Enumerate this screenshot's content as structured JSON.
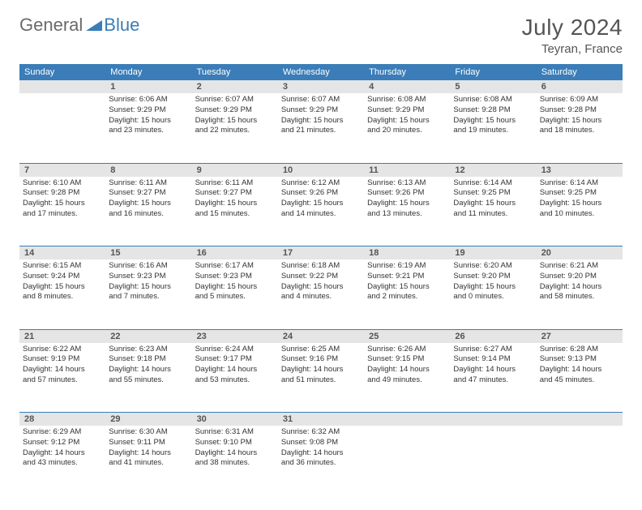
{
  "brand": {
    "part1": "General",
    "part2": "Blue"
  },
  "title": "July 2024",
  "location": "Teyran, France",
  "colors": {
    "header_bg": "#3a7db8",
    "header_fg": "#ffffff",
    "daynum_bg": "#e5e5e5",
    "text": "#333333",
    "divider": "#3a7db8"
  },
  "day_headers": [
    "Sunday",
    "Monday",
    "Tuesday",
    "Wednesday",
    "Thursday",
    "Friday",
    "Saturday"
  ],
  "weeks": [
    {
      "nums": [
        "",
        "1",
        "2",
        "3",
        "4",
        "5",
        "6"
      ],
      "cells": [
        null,
        {
          "sunrise": "Sunrise: 6:06 AM",
          "sunset": "Sunset: 9:29 PM",
          "d1": "Daylight: 15 hours",
          "d2": "and 23 minutes."
        },
        {
          "sunrise": "Sunrise: 6:07 AM",
          "sunset": "Sunset: 9:29 PM",
          "d1": "Daylight: 15 hours",
          "d2": "and 22 minutes."
        },
        {
          "sunrise": "Sunrise: 6:07 AM",
          "sunset": "Sunset: 9:29 PM",
          "d1": "Daylight: 15 hours",
          "d2": "and 21 minutes."
        },
        {
          "sunrise": "Sunrise: 6:08 AM",
          "sunset": "Sunset: 9:29 PM",
          "d1": "Daylight: 15 hours",
          "d2": "and 20 minutes."
        },
        {
          "sunrise": "Sunrise: 6:08 AM",
          "sunset": "Sunset: 9:28 PM",
          "d1": "Daylight: 15 hours",
          "d2": "and 19 minutes."
        },
        {
          "sunrise": "Sunrise: 6:09 AM",
          "sunset": "Sunset: 9:28 PM",
          "d1": "Daylight: 15 hours",
          "d2": "and 18 minutes."
        }
      ]
    },
    {
      "nums": [
        "7",
        "8",
        "9",
        "10",
        "11",
        "12",
        "13"
      ],
      "cells": [
        {
          "sunrise": "Sunrise: 6:10 AM",
          "sunset": "Sunset: 9:28 PM",
          "d1": "Daylight: 15 hours",
          "d2": "and 17 minutes."
        },
        {
          "sunrise": "Sunrise: 6:11 AM",
          "sunset": "Sunset: 9:27 PM",
          "d1": "Daylight: 15 hours",
          "d2": "and 16 minutes."
        },
        {
          "sunrise": "Sunrise: 6:11 AM",
          "sunset": "Sunset: 9:27 PM",
          "d1": "Daylight: 15 hours",
          "d2": "and 15 minutes."
        },
        {
          "sunrise": "Sunrise: 6:12 AM",
          "sunset": "Sunset: 9:26 PM",
          "d1": "Daylight: 15 hours",
          "d2": "and 14 minutes."
        },
        {
          "sunrise": "Sunrise: 6:13 AM",
          "sunset": "Sunset: 9:26 PM",
          "d1": "Daylight: 15 hours",
          "d2": "and 13 minutes."
        },
        {
          "sunrise": "Sunrise: 6:14 AM",
          "sunset": "Sunset: 9:25 PM",
          "d1": "Daylight: 15 hours",
          "d2": "and 11 minutes."
        },
        {
          "sunrise": "Sunrise: 6:14 AM",
          "sunset": "Sunset: 9:25 PM",
          "d1": "Daylight: 15 hours",
          "d2": "and 10 minutes."
        }
      ]
    },
    {
      "nums": [
        "14",
        "15",
        "16",
        "17",
        "18",
        "19",
        "20"
      ],
      "cells": [
        {
          "sunrise": "Sunrise: 6:15 AM",
          "sunset": "Sunset: 9:24 PM",
          "d1": "Daylight: 15 hours",
          "d2": "and 8 minutes."
        },
        {
          "sunrise": "Sunrise: 6:16 AM",
          "sunset": "Sunset: 9:23 PM",
          "d1": "Daylight: 15 hours",
          "d2": "and 7 minutes."
        },
        {
          "sunrise": "Sunrise: 6:17 AM",
          "sunset": "Sunset: 9:23 PM",
          "d1": "Daylight: 15 hours",
          "d2": "and 5 minutes."
        },
        {
          "sunrise": "Sunrise: 6:18 AM",
          "sunset": "Sunset: 9:22 PM",
          "d1": "Daylight: 15 hours",
          "d2": "and 4 minutes."
        },
        {
          "sunrise": "Sunrise: 6:19 AM",
          "sunset": "Sunset: 9:21 PM",
          "d1": "Daylight: 15 hours",
          "d2": "and 2 minutes."
        },
        {
          "sunrise": "Sunrise: 6:20 AM",
          "sunset": "Sunset: 9:20 PM",
          "d1": "Daylight: 15 hours",
          "d2": "and 0 minutes."
        },
        {
          "sunrise": "Sunrise: 6:21 AM",
          "sunset": "Sunset: 9:20 PM",
          "d1": "Daylight: 14 hours",
          "d2": "and 58 minutes."
        }
      ]
    },
    {
      "nums": [
        "21",
        "22",
        "23",
        "24",
        "25",
        "26",
        "27"
      ],
      "cells": [
        {
          "sunrise": "Sunrise: 6:22 AM",
          "sunset": "Sunset: 9:19 PM",
          "d1": "Daylight: 14 hours",
          "d2": "and 57 minutes."
        },
        {
          "sunrise": "Sunrise: 6:23 AM",
          "sunset": "Sunset: 9:18 PM",
          "d1": "Daylight: 14 hours",
          "d2": "and 55 minutes."
        },
        {
          "sunrise": "Sunrise: 6:24 AM",
          "sunset": "Sunset: 9:17 PM",
          "d1": "Daylight: 14 hours",
          "d2": "and 53 minutes."
        },
        {
          "sunrise": "Sunrise: 6:25 AM",
          "sunset": "Sunset: 9:16 PM",
          "d1": "Daylight: 14 hours",
          "d2": "and 51 minutes."
        },
        {
          "sunrise": "Sunrise: 6:26 AM",
          "sunset": "Sunset: 9:15 PM",
          "d1": "Daylight: 14 hours",
          "d2": "and 49 minutes."
        },
        {
          "sunrise": "Sunrise: 6:27 AM",
          "sunset": "Sunset: 9:14 PM",
          "d1": "Daylight: 14 hours",
          "d2": "and 47 minutes."
        },
        {
          "sunrise": "Sunrise: 6:28 AM",
          "sunset": "Sunset: 9:13 PM",
          "d1": "Daylight: 14 hours",
          "d2": "and 45 minutes."
        }
      ]
    },
    {
      "nums": [
        "28",
        "29",
        "30",
        "31",
        "",
        "",
        ""
      ],
      "cells": [
        {
          "sunrise": "Sunrise: 6:29 AM",
          "sunset": "Sunset: 9:12 PM",
          "d1": "Daylight: 14 hours",
          "d2": "and 43 minutes."
        },
        {
          "sunrise": "Sunrise: 6:30 AM",
          "sunset": "Sunset: 9:11 PM",
          "d1": "Daylight: 14 hours",
          "d2": "and 41 minutes."
        },
        {
          "sunrise": "Sunrise: 6:31 AM",
          "sunset": "Sunset: 9:10 PM",
          "d1": "Daylight: 14 hours",
          "d2": "and 38 minutes."
        },
        {
          "sunrise": "Sunrise: 6:32 AM",
          "sunset": "Sunset: 9:08 PM",
          "d1": "Daylight: 14 hours",
          "d2": "and 36 minutes."
        },
        null,
        null,
        null
      ]
    }
  ]
}
